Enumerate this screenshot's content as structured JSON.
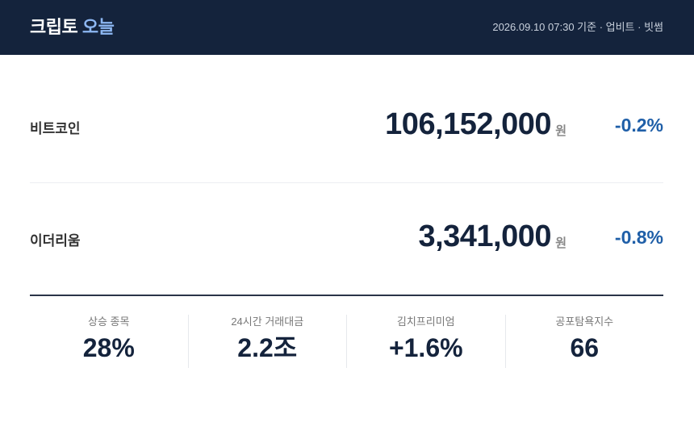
{
  "header": {
    "title": "크립토",
    "title_accent": "오늘",
    "meta": "2026.09.10 07:30 기준 · 업비트 · 빗썸"
  },
  "rows": [
    {
      "name": "비트코인",
      "price": "106,152,000",
      "unit": "원",
      "change": "-0.2%"
    },
    {
      "name": "이더리움",
      "price": "3,341,000",
      "unit": "원",
      "change": "-0.8%"
    }
  ],
  "stats": [
    {
      "label": "상승 종목",
      "value": "28%"
    },
    {
      "label": "24시간 거래대금",
      "value": "2.2조"
    },
    {
      "label": "김치프리미엄",
      "value": "+1.6%"
    },
    {
      "label": "공포탐욕지수",
      "value": "66"
    }
  ]
}
